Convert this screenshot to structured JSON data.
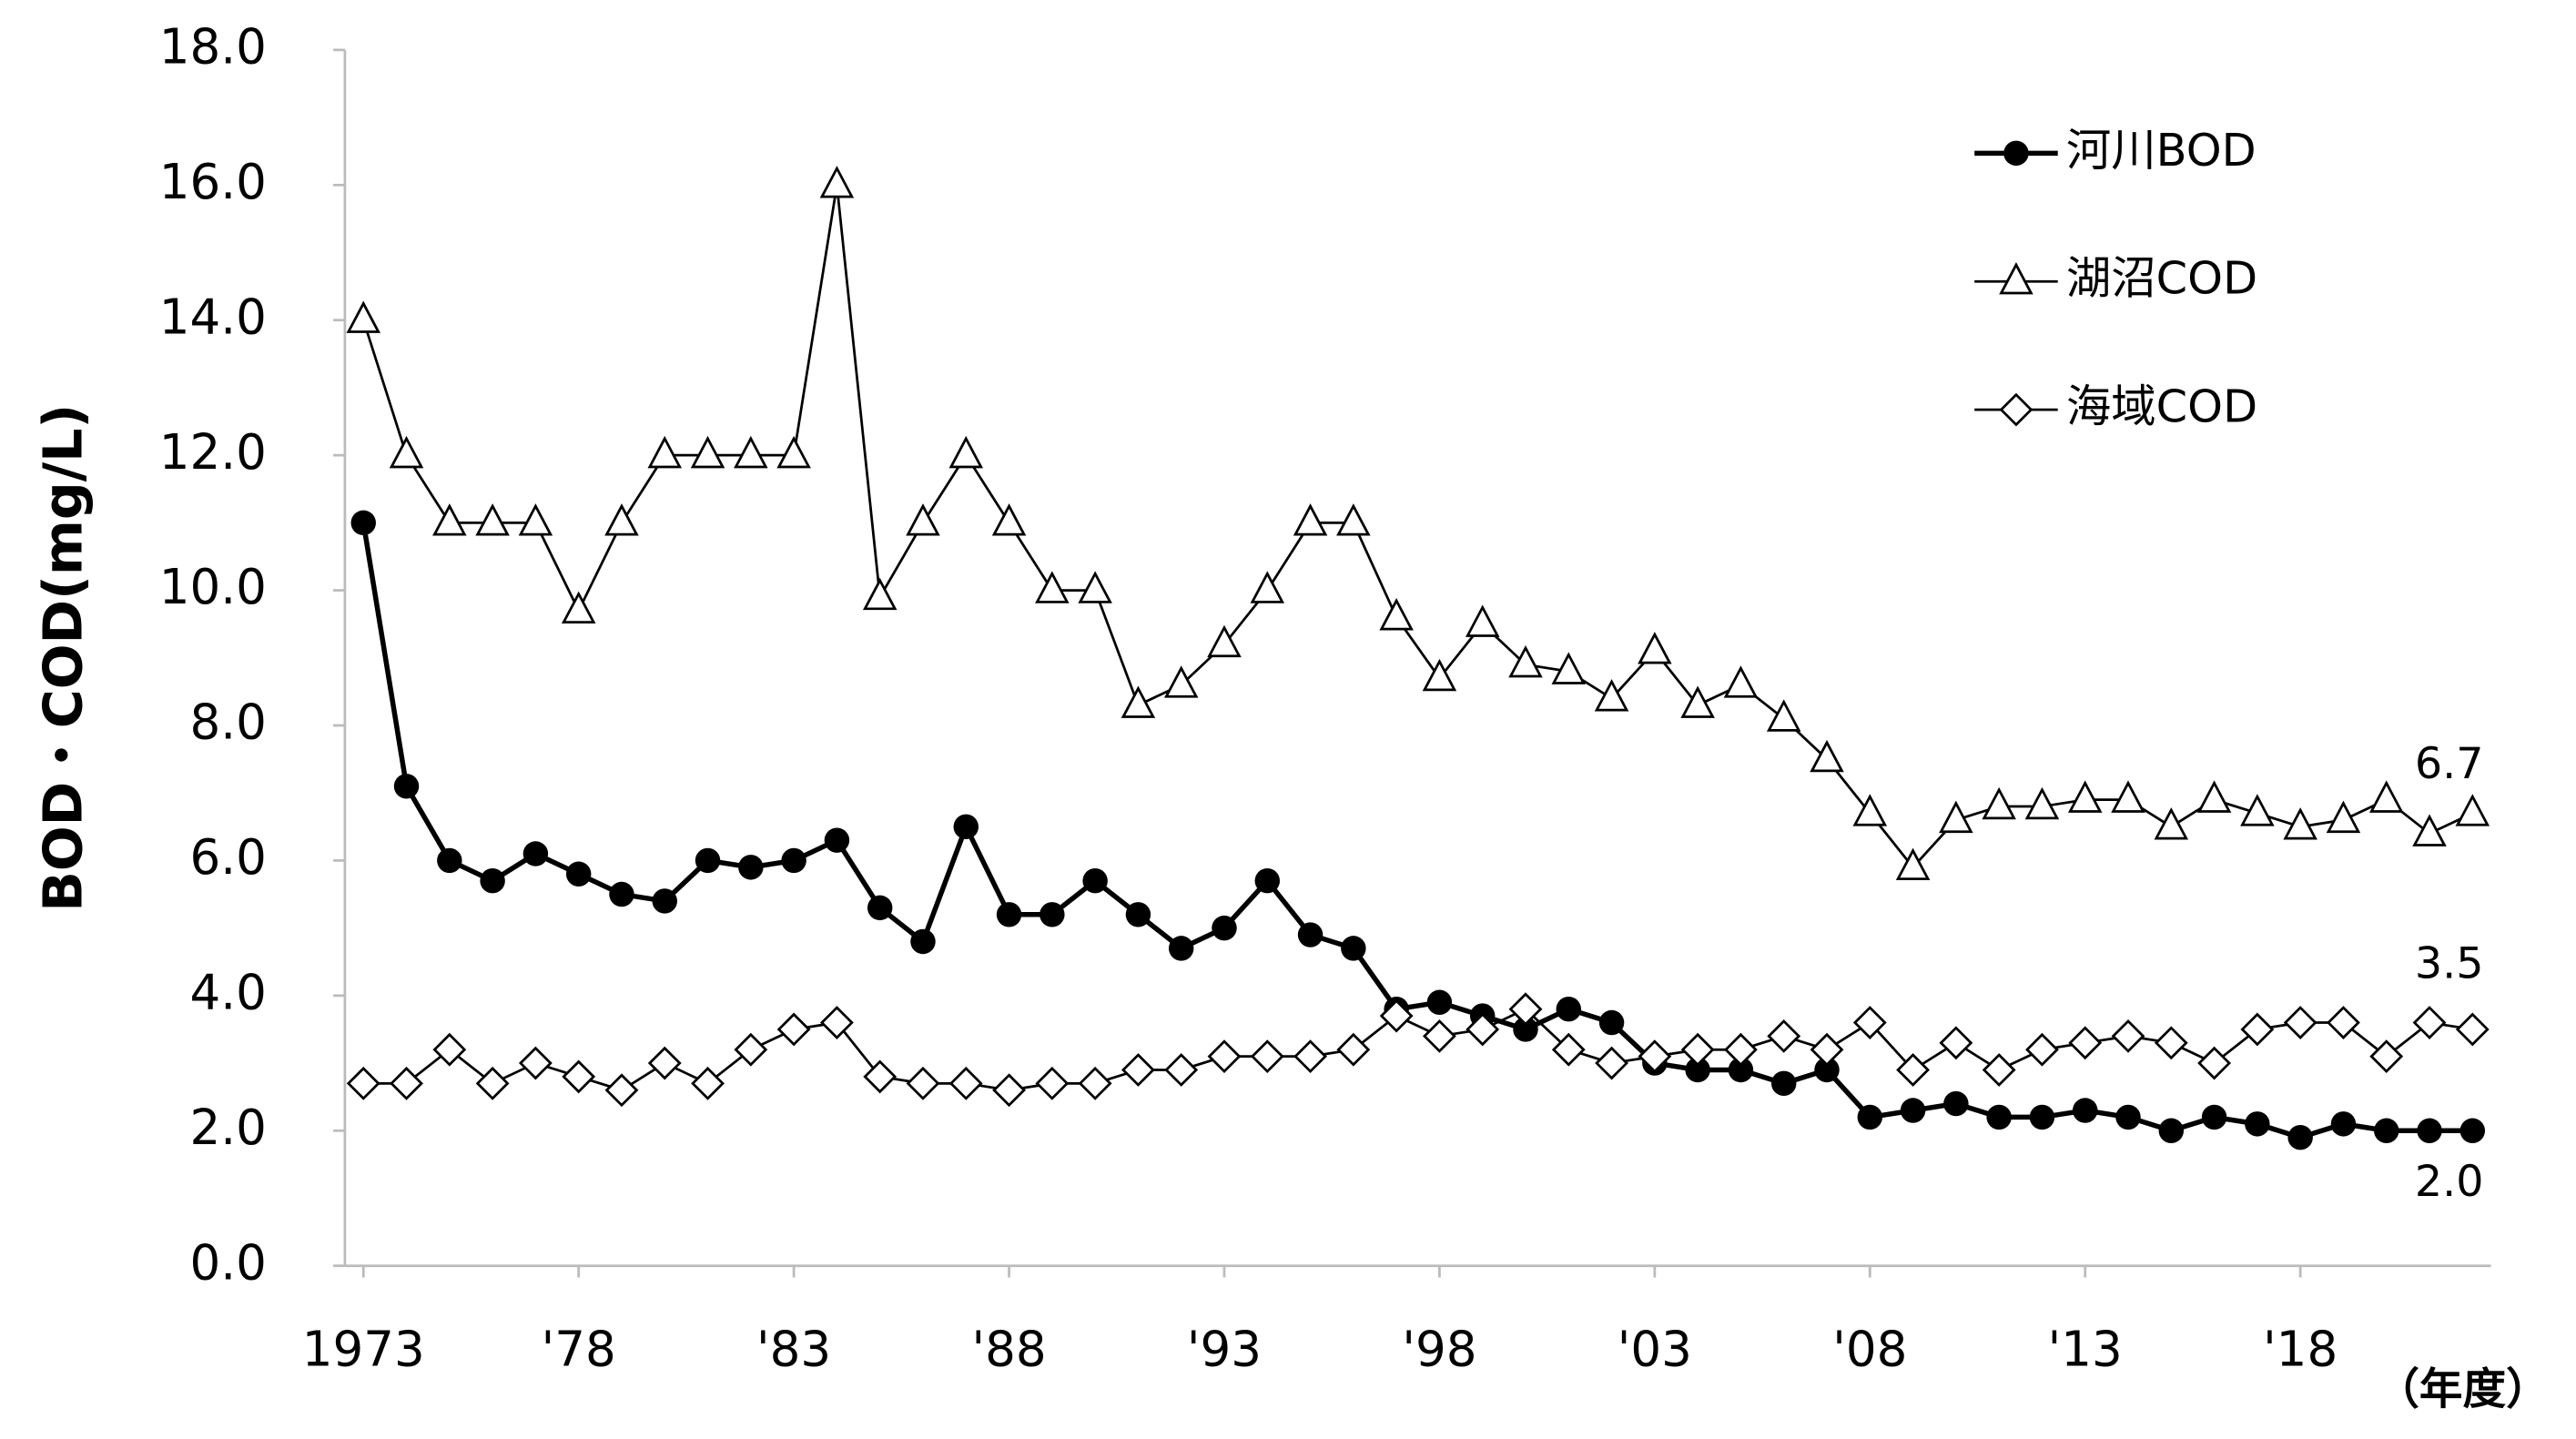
{
  "chart_data": {
    "type": "line",
    "y_label": "BOD・COD(mg/L)",
    "x_label": "（年度）",
    "x": [
      1973,
      1974,
      1975,
      1976,
      1977,
      1978,
      1979,
      1980,
      1981,
      1982,
      1983,
      1984,
      1985,
      1986,
      1987,
      1988,
      1989,
      1990,
      1991,
      1992,
      1993,
      1994,
      1995,
      1996,
      1997,
      1998,
      1999,
      2000,
      2001,
      2002,
      2003,
      2004,
      2005,
      2006,
      2007,
      2008,
      2009,
      2010,
      2011,
      2012,
      2013,
      2014,
      2015,
      2016,
      2017,
      2018,
      2019,
      2020,
      2021,
      2022
    ],
    "xlim": [
      1972.57,
      2022.43
    ],
    "xticks": [
      {
        "value": 1973,
        "label": "1973"
      },
      {
        "value": 1978,
        "label": "'78"
      },
      {
        "value": 1983,
        "label": "'83"
      },
      {
        "value": 1988,
        "label": "'88"
      },
      {
        "value": 1993,
        "label": "'93"
      },
      {
        "value": 1998,
        "label": "'98"
      },
      {
        "value": 2003,
        "label": "'03"
      },
      {
        "value": 2008,
        "label": "'08"
      },
      {
        "value": 2013,
        "label": "'13"
      },
      {
        "value": 2018,
        "label": "'18"
      }
    ],
    "ylim": [
      0,
      18
    ],
    "yticks": [
      {
        "value": 0,
        "label": "0.0"
      },
      {
        "value": 2,
        "label": "2.0"
      },
      {
        "value": 4,
        "label": "4.0"
      },
      {
        "value": 6,
        "label": "6.0"
      },
      {
        "value": 8,
        "label": "8.0"
      },
      {
        "value": 10,
        "label": "10.0"
      },
      {
        "value": 12,
        "label": "12.0"
      },
      {
        "value": 14,
        "label": "14.0"
      },
      {
        "value": 16,
        "label": "16.0"
      },
      {
        "value": 18,
        "label": "18.0"
      }
    ],
    "legend": "top-right",
    "series": [
      {
        "name": "河川BOD",
        "color": "#000000",
        "marker": "circle",
        "end_label": "2.0",
        "values": [
          11,
          7.1,
          6.0,
          5.7,
          6.1,
          5.8,
          5.5,
          5.4,
          6.0,
          5.9,
          6.0,
          6.3,
          5.3,
          4.8,
          6.5,
          5.2,
          5.2,
          5.7,
          5.2,
          4.7,
          5.0,
          5.7,
          4.9,
          4.7,
          3.8,
          3.9,
          3.7,
          3.5,
          3.8,
          3.6,
          3.0,
          2.9,
          2.9,
          2.7,
          2.9,
          2.2,
          2.3,
          2.4,
          2.2,
          2.2,
          2.3,
          2.2,
          2.0,
          2.2,
          2.1,
          1.9,
          2.1,
          2.0,
          2.0,
          2.0
        ]
      },
      {
        "name": "湖沼COD",
        "color": "#000000",
        "marker": "triangle",
        "end_label": "6.7",
        "values": [
          14,
          12,
          11,
          11,
          11,
          9.7,
          11,
          12,
          12,
          12,
          12,
          16,
          9.9,
          11,
          12,
          11,
          10,
          10,
          8.3,
          8.6,
          9.2,
          10,
          11,
          11,
          9.6,
          8.7,
          9.5,
          8.9,
          8.8,
          8.4,
          9.1,
          8.3,
          8.6,
          8.1,
          7.5,
          6.7,
          5.9,
          6.6,
          6.8,
          6.8,
          6.9,
          6.9,
          6.5,
          6.9,
          6.7,
          6.5,
          6.6,
          6.9,
          6.4,
          6.7
        ]
      },
      {
        "name": "海域COD",
        "color": "#000000",
        "marker": "diamond",
        "end_label": "3.5",
        "values": [
          2.7,
          2.7,
          3.2,
          2.7,
          3.0,
          2.8,
          2.6,
          3.0,
          2.7,
          3.2,
          3.5,
          3.6,
          2.8,
          2.7,
          2.7,
          2.6,
          2.7,
          2.7,
          2.9,
          2.9,
          3.1,
          3.1,
          3.1,
          3.2,
          3.7,
          3.4,
          3.5,
          3.8,
          3.2,
          3.0,
          3.1,
          3.2,
          3.2,
          3.4,
          3.2,
          3.6,
          2.9,
          3.3,
          2.9,
          3.2,
          3.3,
          3.4,
          3.3,
          3.0,
          3.5,
          3.6,
          3.6,
          3.1,
          3.6,
          3.5
        ]
      }
    ]
  }
}
